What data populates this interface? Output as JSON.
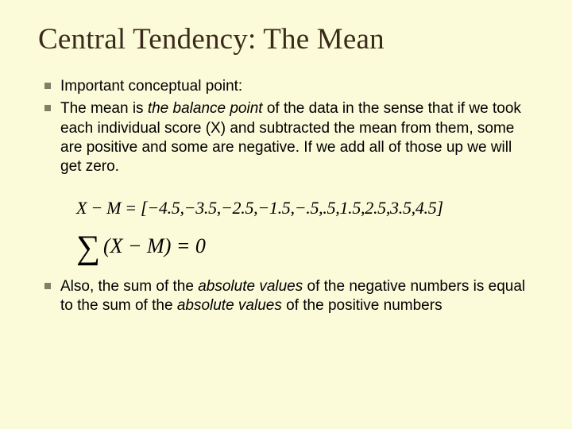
{
  "title": "Central Tendency: The Mean",
  "bullets": {
    "b1": "Important conceptual point:",
    "b2_pre": "The mean is ",
    "b2_em": "the balance point",
    "b2_post": " of the data in the sense that if we took each individual score (X) and subtracted the mean from them, some are positive and some are negative. If we add all of those up we will get zero.",
    "b3_pre": "Also, the sum of the ",
    "b3_em1": "absolute values",
    "b3_mid": " of the negative numbers is equal to the sum of the ",
    "b3_em2": "absolute values",
    "b3_post": " of the positive numbers"
  },
  "formula": {
    "line1": "X − M = [−4.5,−3.5,−2.5,−1.5,−.5,.5,1.5,2.5,3.5,4.5]",
    "sigma": "∑",
    "line2_body": "(X − M) = 0"
  },
  "colors": {
    "background": "#fbfad9",
    "title": "#3a2a1a",
    "bullet_marker": "#808066",
    "text": "#000000"
  },
  "typography": {
    "title_font": "Times New Roman",
    "title_size_pt": 28,
    "body_font": "Arial",
    "body_size_pt": 14,
    "formula_font": "Times New Roman"
  }
}
